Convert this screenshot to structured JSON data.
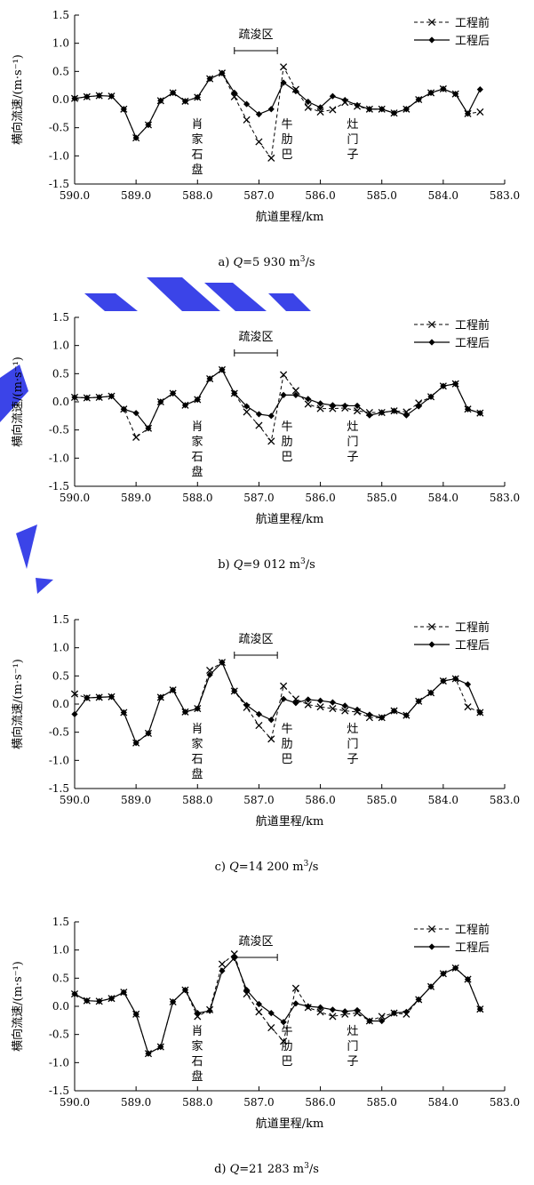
{
  "figure": {
    "ylabel": "横向流速/(m·s⁻¹)",
    "xlabel": "航道里程/km",
    "legend": {
      "before": "工程前",
      "after": "工程后",
      "placement": "top-right"
    },
    "annotations": {
      "dredge_zone": "疏浚区",
      "place_1": [
        "肖",
        "家",
        "石",
        "盘"
      ],
      "place_2": [
        "牛",
        "肋",
        "巴"
      ],
      "place_3": [
        "灶",
        "门",
        "子"
      ]
    }
  },
  "chart_data": [
    {
      "type": "line",
      "caption": "a) Q=5 930 m³/s",
      "caption_parts": {
        "prefix": "a) ",
        "var": "Q",
        "value": "=5 930 m",
        "sup": "3",
        "unit": "/s"
      },
      "xlim": [
        590.0,
        583.0
      ],
      "ylim": [
        -1.5,
        1.5
      ],
      "xticks": [
        "590.0",
        "589.0",
        "588.0",
        "587.0",
        "586.0",
        "585.0",
        "584.0",
        "583.0"
      ],
      "yticks": [
        "1.5",
        "1.0",
        "0.5",
        "0.0",
        "-0.5",
        "-1.0",
        "-1.5"
      ],
      "dredge_range": [
        587.4,
        586.7
      ],
      "series": [
        {
          "name": "工程前",
          "style": "dashed-x",
          "x": [
            590.0,
            589.8,
            589.6,
            589.4,
            589.2,
            589.0,
            588.8,
            588.6,
            588.4,
            588.2,
            588.0,
            587.8,
            587.6,
            587.4,
            587.2,
            587.0,
            586.8,
            586.6,
            586.4,
            586.2,
            586.0,
            585.8,
            585.6,
            585.4,
            585.2,
            585.0,
            584.8,
            584.6,
            584.4,
            584.2,
            584.0,
            583.8,
            583.6,
            583.4
          ],
          "y": [
            0.02,
            0.05,
            0.07,
            0.06,
            -0.17,
            -0.68,
            -0.45,
            -0.02,
            0.12,
            -0.03,
            0.04,
            0.37,
            0.47,
            0.05,
            -0.36,
            -0.75,
            -1.04,
            0.58,
            0.18,
            -0.14,
            -0.22,
            -0.18,
            -0.05,
            -0.12,
            -0.17,
            -0.17,
            -0.24,
            -0.17,
            0.0,
            0.12,
            0.19,
            0.1,
            -0.25,
            -0.22
          ]
        },
        {
          "name": "工程后",
          "style": "solid-diamond",
          "x": [
            590.0,
            589.8,
            589.6,
            589.4,
            589.2,
            589.0,
            588.8,
            588.6,
            588.4,
            588.2,
            588.0,
            587.8,
            587.6,
            587.4,
            587.2,
            587.0,
            586.8,
            586.6,
            586.4,
            586.2,
            586.0,
            585.8,
            585.6,
            585.4,
            585.2,
            585.0,
            584.8,
            584.6,
            584.4,
            584.2,
            584.0,
            583.8,
            583.6,
            583.4
          ],
          "y": [
            0.02,
            0.05,
            0.07,
            0.06,
            -0.17,
            -0.68,
            -0.45,
            -0.02,
            0.12,
            -0.03,
            0.04,
            0.37,
            0.47,
            0.12,
            -0.08,
            -0.26,
            -0.17,
            0.3,
            0.15,
            -0.04,
            -0.14,
            0.06,
            -0.01,
            -0.1,
            -0.17,
            -0.17,
            -0.24,
            -0.17,
            0.0,
            0.12,
            0.19,
            0.1,
            -0.25,
            0.18
          ]
        }
      ]
    },
    {
      "type": "line",
      "caption": "b) Q=9 012 m³/s",
      "caption_parts": {
        "prefix": "b) ",
        "var": "Q",
        "value": "=9 012 m",
        "sup": "3",
        "unit": "/s"
      },
      "xlim": [
        590.0,
        583.0
      ],
      "ylim": [
        -1.5,
        1.5
      ],
      "xticks": [
        "590.0",
        "589.0",
        "588.0",
        "587.0",
        "586.0",
        "585.0",
        "584.0",
        "583.0"
      ],
      "yticks": [
        "1.5",
        "1.0",
        "0.5",
        "0.0",
        "-0.5",
        "-1.0",
        "-1.5"
      ],
      "dredge_range": [
        587.4,
        586.7
      ],
      "series": [
        {
          "name": "工程前",
          "style": "dashed-x",
          "x": [
            590.0,
            589.8,
            589.6,
            589.4,
            589.2,
            589.0,
            588.8,
            588.6,
            588.4,
            588.2,
            588.0,
            587.8,
            587.6,
            587.4,
            587.2,
            587.0,
            586.8,
            586.6,
            586.4,
            586.2,
            586.0,
            585.8,
            585.6,
            585.4,
            585.2,
            585.0,
            584.8,
            584.6,
            584.4,
            584.2,
            584.0,
            583.8,
            583.6,
            583.4
          ],
          "y": [
            0.08,
            0.07,
            0.08,
            0.1,
            -0.13,
            -0.63,
            -0.47,
            0.0,
            0.15,
            -0.06,
            0.04,
            0.41,
            0.57,
            0.15,
            -0.18,
            -0.42,
            -0.7,
            0.48,
            0.2,
            -0.04,
            -0.12,
            -0.12,
            -0.11,
            -0.16,
            -0.19,
            -0.19,
            -0.16,
            -0.18,
            -0.02,
            0.09,
            0.28,
            0.32,
            -0.13,
            -0.2
          ]
        },
        {
          "name": "工程后",
          "style": "solid-diamond",
          "x": [
            590.0,
            589.8,
            589.6,
            589.4,
            589.2,
            589.0,
            588.8,
            588.6,
            588.4,
            588.2,
            588.0,
            587.8,
            587.6,
            587.4,
            587.2,
            587.0,
            586.8,
            586.6,
            586.4,
            586.2,
            586.0,
            585.8,
            585.6,
            585.4,
            585.2,
            585.0,
            584.8,
            584.6,
            584.4,
            584.2,
            584.0,
            583.8,
            583.6,
            583.4
          ],
          "y": [
            0.08,
            0.07,
            0.08,
            0.1,
            -0.13,
            -0.2,
            -0.47,
            0.0,
            0.15,
            -0.06,
            0.04,
            0.41,
            0.57,
            0.15,
            -0.08,
            -0.22,
            -0.25,
            0.12,
            0.12,
            0.05,
            -0.03,
            -0.06,
            -0.07,
            -0.07,
            -0.24,
            -0.19,
            -0.16,
            -0.24,
            -0.08,
            0.09,
            0.28,
            0.32,
            -0.13,
            -0.2
          ]
        }
      ]
    },
    {
      "type": "line",
      "caption": "c) Q=14 200 m³/s",
      "caption_parts": {
        "prefix": "c) ",
        "var": "Q",
        "value": "=14 200 m",
        "sup": "3",
        "unit": "/s"
      },
      "xlim": [
        590.0,
        583.0
      ],
      "ylim": [
        -1.5,
        1.5
      ],
      "xticks": [
        "590.0",
        "589.0",
        "588.0",
        "587.0",
        "586.0",
        "585.0",
        "584.0",
        "583.0"
      ],
      "yticks": [
        "1.5",
        "1.0",
        "0.5",
        "0.0",
        "-0.5",
        "-1.0",
        "-1.5"
      ],
      "dredge_range": [
        587.4,
        586.7
      ],
      "series": [
        {
          "name": "工程前",
          "style": "dashed-x",
          "x": [
            590.0,
            589.8,
            589.6,
            589.4,
            589.2,
            589.0,
            588.8,
            588.6,
            588.4,
            588.2,
            588.0,
            587.8,
            587.6,
            587.4,
            587.2,
            587.0,
            586.8,
            586.6,
            586.4,
            586.2,
            586.0,
            585.8,
            585.6,
            585.4,
            585.2,
            585.0,
            584.8,
            584.6,
            584.4,
            584.2,
            584.0,
            583.8,
            583.6,
            583.4
          ],
          "y": [
            0.18,
            0.11,
            0.12,
            0.13,
            -0.15,
            -0.69,
            -0.52,
            0.12,
            0.25,
            -0.14,
            -0.08,
            0.6,
            0.74,
            0.23,
            -0.06,
            -0.38,
            -0.62,
            0.32,
            0.09,
            -0.01,
            -0.05,
            -0.08,
            -0.12,
            -0.14,
            -0.24,
            -0.24,
            -0.12,
            -0.2,
            0.05,
            0.2,
            0.41,
            0.45,
            -0.05,
            -0.15
          ]
        },
        {
          "name": "工程后",
          "style": "solid-diamond",
          "x": [
            590.0,
            589.8,
            589.6,
            589.4,
            589.2,
            589.0,
            588.8,
            588.6,
            588.4,
            588.2,
            588.0,
            587.8,
            587.6,
            587.4,
            587.2,
            587.0,
            586.8,
            586.6,
            586.4,
            586.2,
            586.0,
            585.8,
            585.6,
            585.4,
            585.2,
            585.0,
            584.8,
            584.6,
            584.4,
            584.2,
            584.0,
            583.8,
            583.6,
            583.4
          ],
          "y": [
            -0.18,
            0.11,
            0.12,
            0.13,
            -0.15,
            -0.69,
            -0.52,
            0.12,
            0.25,
            -0.14,
            -0.08,
            0.52,
            0.74,
            0.23,
            -0.02,
            -0.18,
            -0.28,
            0.09,
            0.02,
            0.08,
            0.06,
            0.03,
            -0.03,
            -0.1,
            -0.19,
            -0.24,
            -0.12,
            -0.2,
            0.05,
            0.2,
            0.41,
            0.45,
            0.35,
            -0.15
          ]
        }
      ]
    },
    {
      "type": "line",
      "caption": "d) Q=21 283 m³/s",
      "caption_parts": {
        "prefix": "d) ",
        "var": "Q",
        "value": "=21 283 m",
        "sup": "3",
        "unit": "/s"
      },
      "xlim": [
        590.0,
        583.0
      ],
      "ylim": [
        -1.5,
        1.5
      ],
      "xticks": [
        "590.0",
        "589.0",
        "588.0",
        "587.0",
        "586.0",
        "585.0",
        "584.0",
        "583.0"
      ],
      "yticks": [
        "1.5",
        "1.0",
        "0.5",
        "0.0",
        "-0.5",
        "-1.0",
        "-1.5"
      ],
      "dredge_range": [
        587.4,
        586.7
      ],
      "series": [
        {
          "name": "工程前",
          "style": "dashed-x",
          "x": [
            590.0,
            589.8,
            589.6,
            589.4,
            589.2,
            589.0,
            588.8,
            588.6,
            588.4,
            588.2,
            588.0,
            587.8,
            587.6,
            587.4,
            587.2,
            587.0,
            586.8,
            586.6,
            586.4,
            586.2,
            586.0,
            585.8,
            585.6,
            585.4,
            585.2,
            585.0,
            584.8,
            584.6,
            584.4,
            584.2,
            584.0,
            583.8,
            583.6,
            583.4
          ],
          "y": [
            0.22,
            0.1,
            0.09,
            0.14,
            0.25,
            -0.14,
            -0.84,
            -0.72,
            0.08,
            0.29,
            -0.18,
            -0.06,
            0.75,
            0.93,
            0.22,
            -0.1,
            -0.38,
            -0.62,
            0.32,
            -0.02,
            -0.1,
            -0.18,
            -0.14,
            -0.12,
            -0.26,
            -0.18,
            -0.12,
            -0.14,
            0.12,
            0.35,
            0.58,
            0.68,
            0.48,
            -0.05
          ]
        },
        {
          "name": "工程后",
          "style": "solid-diamond",
          "x": [
            590.0,
            589.8,
            589.6,
            589.4,
            589.2,
            589.0,
            588.8,
            588.6,
            588.4,
            588.2,
            588.0,
            587.8,
            587.6,
            587.4,
            587.2,
            587.0,
            586.8,
            586.6,
            586.4,
            586.2,
            586.0,
            585.8,
            585.6,
            585.4,
            585.2,
            585.0,
            584.8,
            584.6,
            584.4,
            584.2,
            584.0,
            583.8,
            583.6,
            583.4
          ],
          "y": [
            0.22,
            0.1,
            0.09,
            0.14,
            0.25,
            -0.14,
            -0.84,
            -0.72,
            0.08,
            0.29,
            -0.12,
            -0.08,
            0.63,
            0.86,
            0.29,
            0.04,
            -0.12,
            -0.28,
            0.05,
            0.0,
            -0.02,
            -0.06,
            -0.09,
            -0.07,
            -0.26,
            -0.26,
            -0.12,
            -0.1,
            0.12,
            0.35,
            0.58,
            0.68,
            0.48,
            -0.05
          ]
        }
      ]
    }
  ]
}
